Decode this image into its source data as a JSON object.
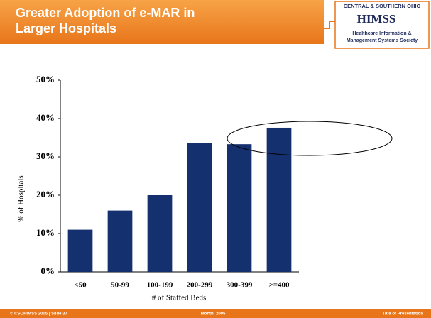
{
  "slide": {
    "title_lines": [
      "Greater Adoption of e-MAR in",
      "Larger Hospitals"
    ],
    "logo": {
      "top": "CENTRAL & SOUTHERN OHIO",
      "name": "HIMSS",
      "sub_lines": [
        "Healthcare Information &",
        "Management Systems Society"
      ]
    },
    "footer": {
      "left": "© CSOHIMSS 2005  |  Slide 37",
      "center": "Month, 2005",
      "right": "Title of Presentation"
    }
  },
  "chart_data": {
    "type": "bar",
    "categories": [
      "<50",
      "50-99",
      "100-199",
      "200-299",
      "300-399",
      ">=400"
    ],
    "values": [
      11,
      16,
      20,
      33.7,
      33.3,
      37.6
    ],
    "color": "#14306e",
    "x_label": "# of Staffed Beds",
    "y_label": "% of Hospitals",
    "ylim": [
      0,
      50
    ],
    "yticks": [
      {
        "value": 0,
        "label": "0%"
      },
      {
        "value": 10,
        "label": "10%"
      },
      {
        "value": 20,
        "label": "20%"
      },
      {
        "value": 30,
        "label": "30%"
      },
      {
        "value": 40,
        "label": "40%"
      },
      {
        "value": 50,
        "label": "50%"
      }
    ]
  }
}
